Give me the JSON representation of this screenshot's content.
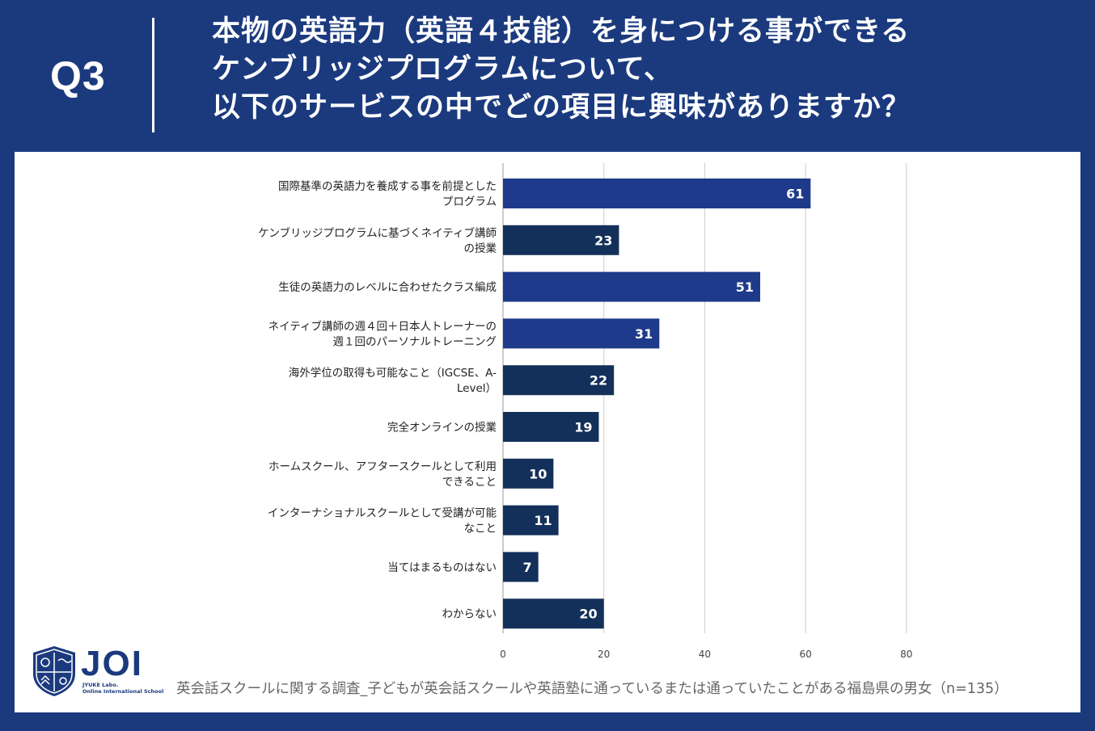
{
  "header": {
    "question_label": "Q3",
    "title_lines": [
      "本物の英語力（英語４技能）を身につける事ができる",
      "ケンブリッジプログラムについて、",
      "以下のサービスの中でどの項目に興味がありますか？"
    ]
  },
  "colors": {
    "background": "#1b3a7e",
    "bar_highlight": "#1e3a8a",
    "bar_default": "#13305a",
    "grid": "#cccccc"
  },
  "chart_data": {
    "type": "bar",
    "orientation": "horizontal",
    "title": "",
    "xlabel": "",
    "ylabel": "",
    "xlim": [
      0,
      80
    ],
    "x_ticks": [
      0,
      20,
      40,
      60,
      80
    ],
    "grid": true,
    "categories": [
      [
        "国際基準の英語力を養成する事を前提とした",
        "プログラム"
      ],
      [
        "ケンブリッジプログラムに基づくネイティブ講師",
        "の授業"
      ],
      [
        "生徒の英語力のレベルに合わせたクラス編成"
      ],
      [
        "ネイティブ講師の週４回＋日本人トレーナーの",
        "週１回のパーソナルトレーニング"
      ],
      [
        "海外学位の取得も可能なこと（IGCSE、A-",
        "Level）"
      ],
      [
        "完全オンラインの授業"
      ],
      [
        "ホームスクール、アフタースクールとして利用",
        "できること"
      ],
      [
        "インターナショナルスクールとして受講が可能",
        "なこと"
      ],
      [
        "当てはまるものはない"
      ],
      [
        "わからない"
      ]
    ],
    "values": [
      61,
      23,
      51,
      31,
      22,
      19,
      10,
      11,
      7,
      20
    ],
    "highlight": [
      true,
      false,
      true,
      true,
      false,
      false,
      false,
      false,
      false,
      false
    ]
  },
  "logo": {
    "name": "JOI",
    "subtitle_lines": [
      "JYUKE Labo.",
      "Online International School"
    ]
  },
  "footer": {
    "source": "英会話スクールに関する調査_子どもが英会話スクールや英語塾に通っているまたは通っていたことがある福島県の男女（n=135）"
  }
}
